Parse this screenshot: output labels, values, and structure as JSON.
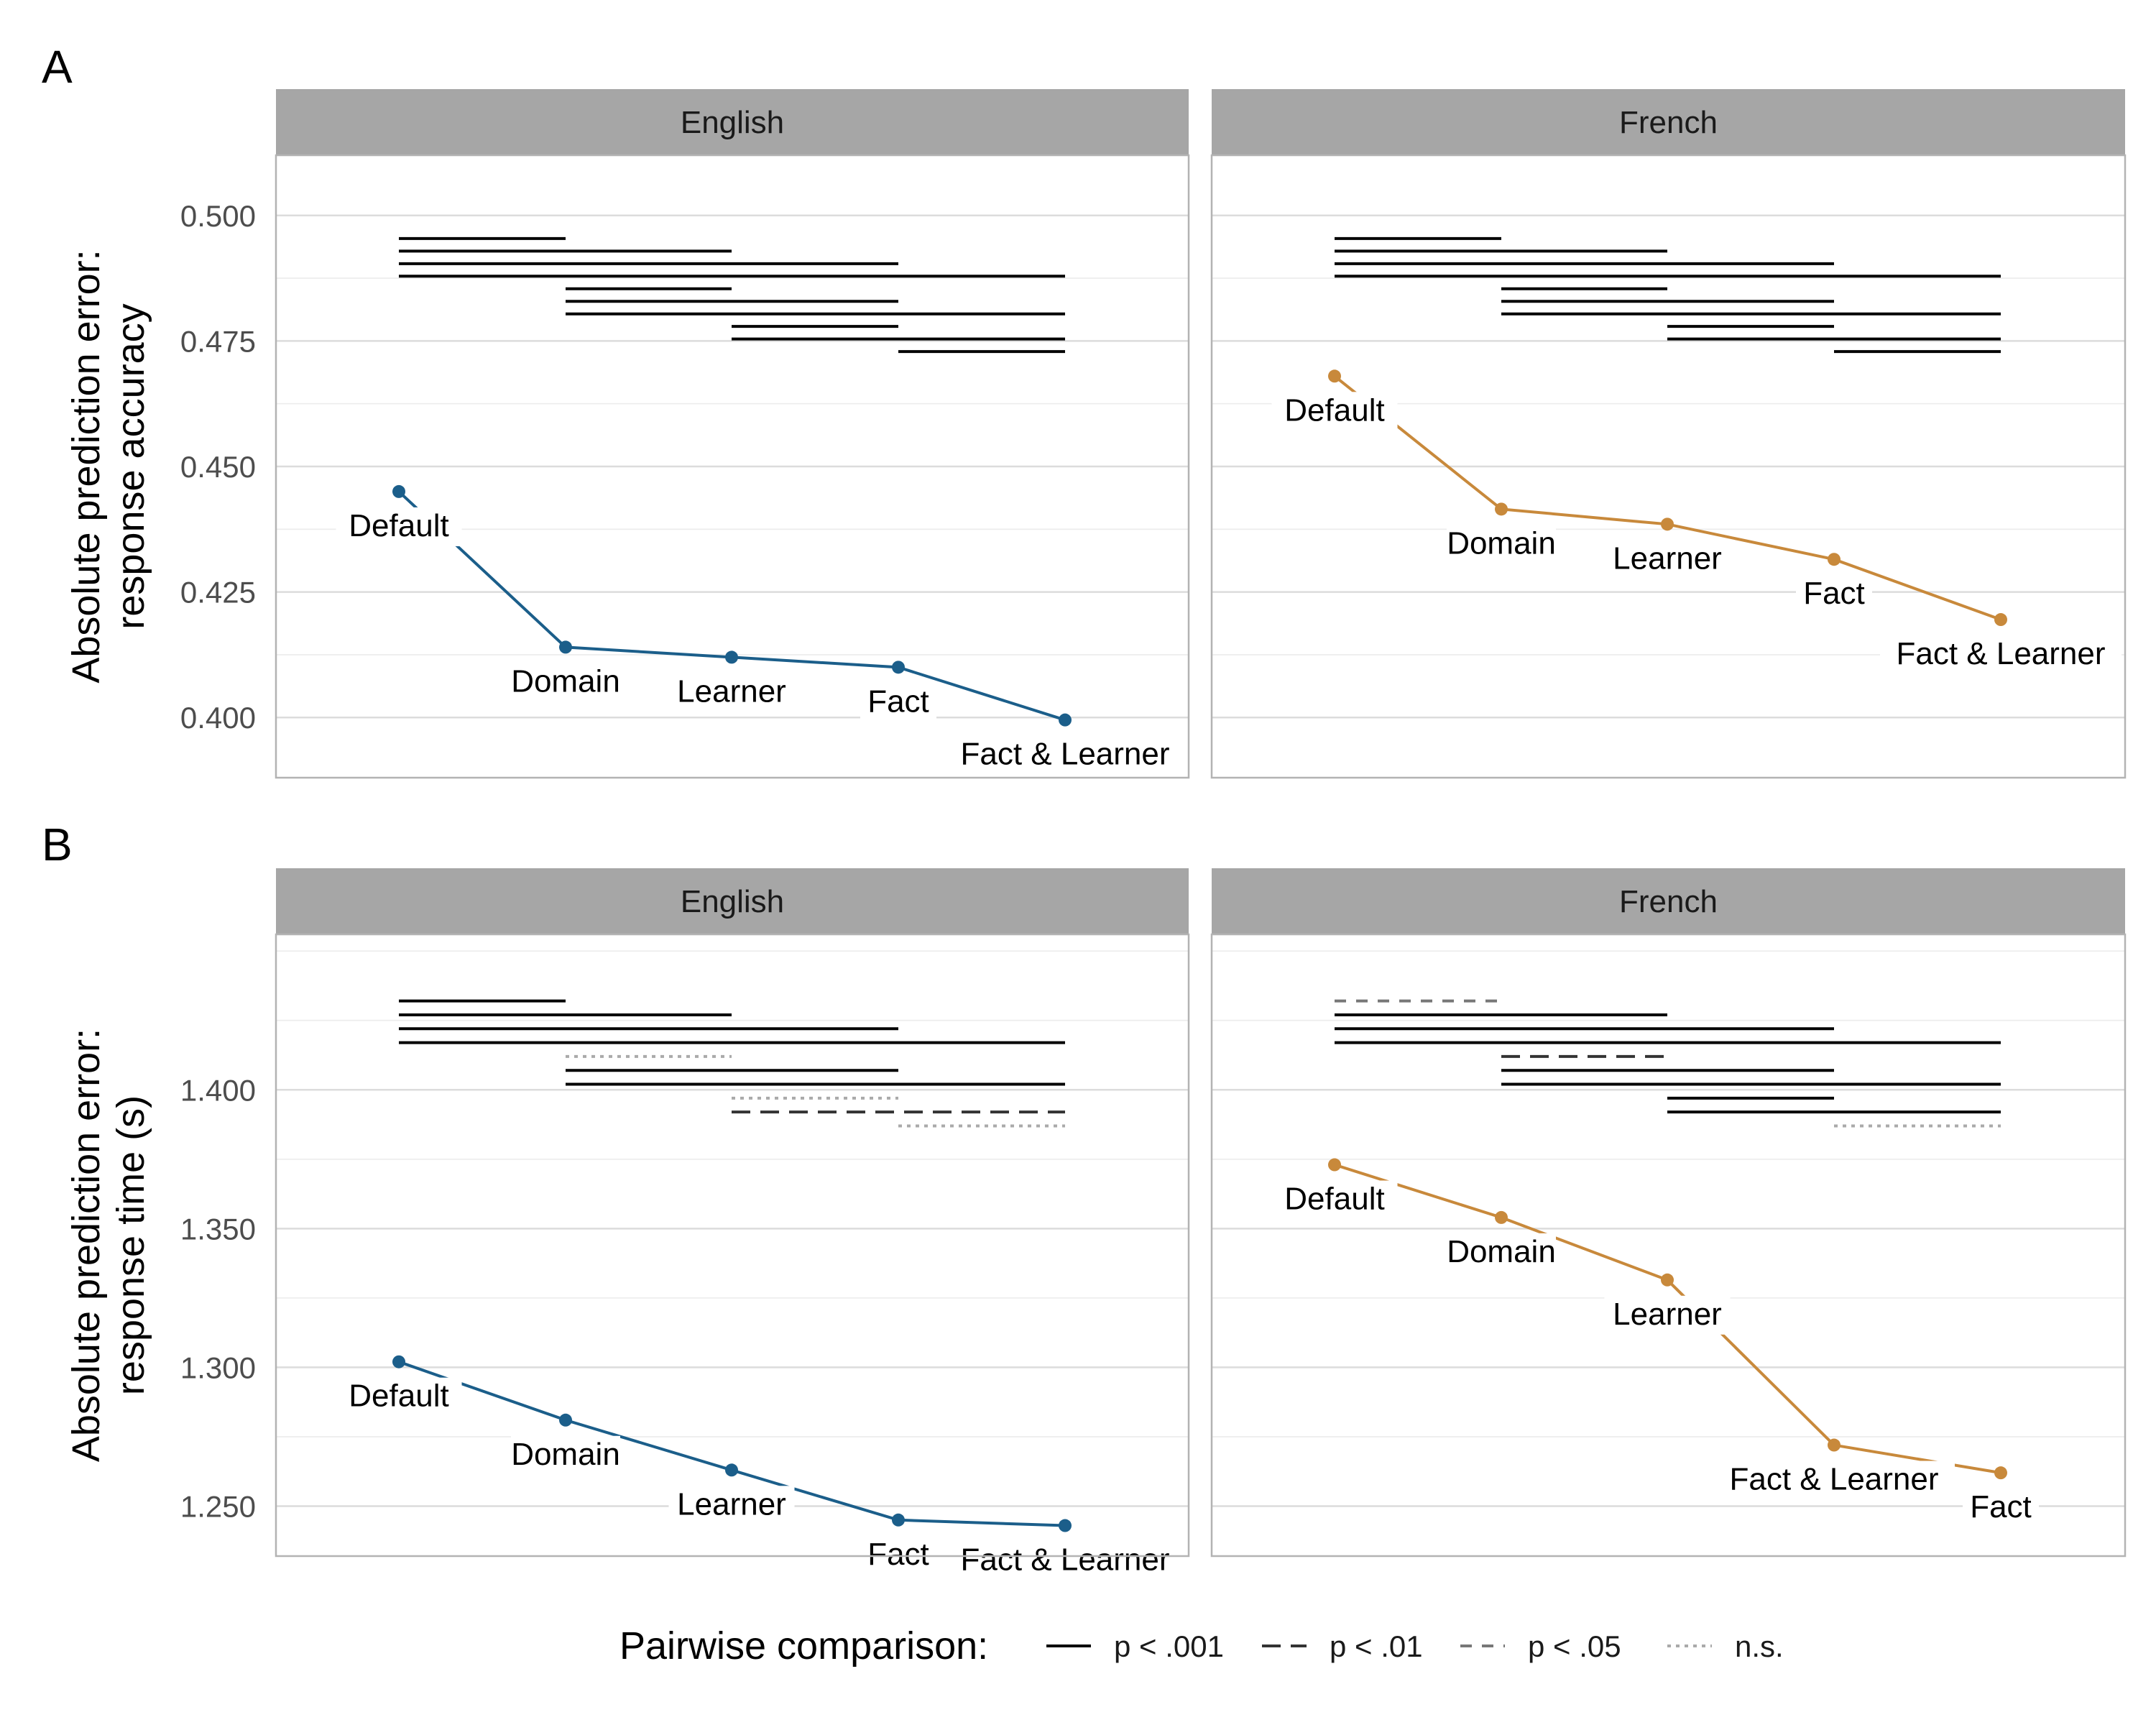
{
  "chart_data": [
    {
      "type": "line",
      "panel": "A",
      "ylabel": [
        "Absolute prediction error:",
        "response accuracy"
      ],
      "ylim": [
        0.388,
        0.512
      ],
      "yticks": [
        0.4,
        0.425,
        0.45,
        0.475,
        0.5
      ],
      "ytick_labels": [
        "0.400",
        "0.425",
        "0.450",
        "0.475",
        "0.500"
      ],
      "facets": [
        {
          "label": "English",
          "color": "#1B5E8A",
          "points": [
            {
              "label": "Default",
              "y": 0.445
            },
            {
              "label": "Domain",
              "y": 0.414
            },
            {
              "label": "Learner",
              "y": 0.412
            },
            {
              "label": "Fact",
              "y": 0.41
            },
            {
              "label": "Fact & Learner",
              "y": 0.3995
            }
          ],
          "comparisons": [
            {
              "from": 0,
              "to": 1,
              "y": 0.4954,
              "p": "p < .001"
            },
            {
              "from": 0,
              "to": 2,
              "y": 0.4929,
              "p": "p < .001"
            },
            {
              "from": 0,
              "to": 3,
              "y": 0.4904,
              "p": "p < .001"
            },
            {
              "from": 0,
              "to": 4,
              "y": 0.4879,
              "p": "p < .001"
            },
            {
              "from": 1,
              "to": 2,
              "y": 0.4854,
              "p": "p < .001"
            },
            {
              "from": 1,
              "to": 3,
              "y": 0.4829,
              "p": "p < .001"
            },
            {
              "from": 1,
              "to": 4,
              "y": 0.4804,
              "p": "p < .001"
            },
            {
              "from": 2,
              "to": 3,
              "y": 0.4779,
              "p": "p < .001"
            },
            {
              "from": 2,
              "to": 4,
              "y": 0.4754,
              "p": "p < .001"
            },
            {
              "from": 3,
              "to": 4,
              "y": 0.4729,
              "p": "p < .001"
            }
          ]
        },
        {
          "label": "French",
          "color": "#C8893B",
          "points": [
            {
              "label": "Default",
              "y": 0.468
            },
            {
              "label": "Domain",
              "y": 0.4415
            },
            {
              "label": "Learner",
              "y": 0.4385
            },
            {
              "label": "Fact",
              "y": 0.4315
            },
            {
              "label": "Fact & Learner",
              "y": 0.4195
            }
          ],
          "comparisons": [
            {
              "from": 0,
              "to": 1,
              "y": 0.4954,
              "p": "p < .001"
            },
            {
              "from": 0,
              "to": 2,
              "y": 0.4929,
              "p": "p < .001"
            },
            {
              "from": 0,
              "to": 3,
              "y": 0.4904,
              "p": "p < .001"
            },
            {
              "from": 0,
              "to": 4,
              "y": 0.4879,
              "p": "p < .001"
            },
            {
              "from": 1,
              "to": 2,
              "y": 0.4854,
              "p": "p < .001"
            },
            {
              "from": 1,
              "to": 3,
              "y": 0.4829,
              "p": "p < .001"
            },
            {
              "from": 1,
              "to": 4,
              "y": 0.4804,
              "p": "p < .001"
            },
            {
              "from": 2,
              "to": 3,
              "y": 0.4779,
              "p": "p < .001"
            },
            {
              "from": 2,
              "to": 4,
              "y": 0.4754,
              "p": "p < .001"
            },
            {
              "from": 3,
              "to": 4,
              "y": 0.4729,
              "p": "p < .001"
            }
          ]
        }
      ]
    },
    {
      "type": "line",
      "panel": "B",
      "ylabel": [
        "Absolute prediction error:",
        "response time (s)"
      ],
      "ylim": [
        1.232,
        1.456
      ],
      "yticks": [
        1.25,
        1.3,
        1.35,
        1.4
      ],
      "ytick_labels": [
        "1.250",
        "1.300",
        "1.350",
        "1.400"
      ],
      "facets": [
        {
          "label": "English",
          "color": "#1B5E8A",
          "points": [
            {
              "label": "Default",
              "y": 1.302
            },
            {
              "label": "Domain",
              "y": 1.281
            },
            {
              "label": "Learner",
              "y": 1.263
            },
            {
              "label": "Fact",
              "y": 1.245
            },
            {
              "label": "Fact & Learner",
              "y": 1.243
            }
          ],
          "comparisons": [
            {
              "from": 0,
              "to": 1,
              "y": 1.432,
              "p": "p < .001"
            },
            {
              "from": 0,
              "to": 2,
              "y": 1.427,
              "p": "p < .001"
            },
            {
              "from": 0,
              "to": 3,
              "y": 1.422,
              "p": "p < .001"
            },
            {
              "from": 0,
              "to": 4,
              "y": 1.417,
              "p": "p < .001"
            },
            {
              "from": 1,
              "to": 2,
              "y": 1.412,
              "p": "n.s."
            },
            {
              "from": 1,
              "to": 3,
              "y": 1.407,
              "p": "p < .001"
            },
            {
              "from": 1,
              "to": 4,
              "y": 1.402,
              "p": "p < .001"
            },
            {
              "from": 2,
              "to": 3,
              "y": 1.397,
              "p": "n.s."
            },
            {
              "from": 2,
              "to": 4,
              "y": 1.392,
              "p": "p < .01"
            },
            {
              "from": 3,
              "to": 4,
              "y": 1.387,
              "p": "n.s."
            }
          ]
        },
        {
          "label": "French",
          "color": "#C8893B",
          "points": [
            {
              "label": "Default",
              "y": 1.373
            },
            {
              "label": "Domain",
              "y": 1.354
            },
            {
              "label": "Learner",
              "y": 1.3315
            },
            {
              "label": "Fact & Learner",
              "y": 1.272
            },
            {
              "label": "Fact",
              "y": 1.262
            }
          ],
          "comparisons": [
            {
              "from": 0,
              "to": 1,
              "y": 1.432,
              "p": "p < .05"
            },
            {
              "from": 0,
              "to": 2,
              "y": 1.427,
              "p": "p < .001"
            },
            {
              "from": 0,
              "to": 3,
              "y": 1.422,
              "p": "p < .001"
            },
            {
              "from": 0,
              "to": 4,
              "y": 1.417,
              "p": "p < .001"
            },
            {
              "from": 1,
              "to": 2,
              "y": 1.412,
              "p": "p < .01"
            },
            {
              "from": 1,
              "to": 3,
              "y": 1.407,
              "p": "p < .001"
            },
            {
              "from": 1,
              "to": 4,
              "y": 1.402,
              "p": "p < .001"
            },
            {
              "from": 2,
              "to": 3,
              "y": 1.397,
              "p": "p < .001"
            },
            {
              "from": 2,
              "to": 4,
              "y": 1.392,
              "p": "p < .001"
            },
            {
              "from": 3,
              "to": 4,
              "y": 1.387,
              "p": "n.s."
            }
          ]
        }
      ]
    }
  ],
  "legend": {
    "title": "Pairwise comparison:",
    "placement": "bottom",
    "items": [
      {
        "label": "p < .001",
        "style": "solid"
      },
      {
        "label": "p < .01",
        "style": "longdash"
      },
      {
        "label": "p < .05",
        "style": "dashed"
      },
      {
        "label": "n.s.",
        "style": "dotted"
      }
    ]
  },
  "colors": {
    "english": "#1B5E8A",
    "french": "#C8893B",
    "strip": "#A6A6A6",
    "grid": "#DDDDDD"
  }
}
